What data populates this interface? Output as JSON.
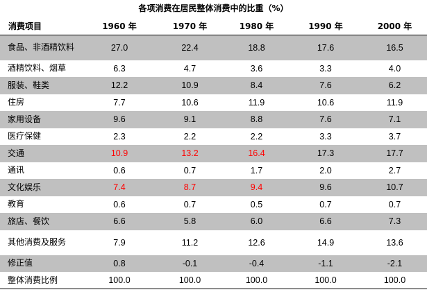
{
  "title": "各项消费在居民整体消费中的比重（%）",
  "headers": [
    "消费项目",
    "1960 年",
    "1970 年",
    "1980 年",
    "1990 年",
    "2000 年"
  ],
  "rows": [
    {
      "item": "食品、非酒精饮料",
      "values": [
        "27.0",
        "22.4",
        "18.8",
        "17.6",
        "16.5"
      ],
      "highlight": []
    },
    {
      "item": "酒精饮料、烟草",
      "values": [
        "6.3",
        "4.7",
        "3.6",
        "3.3",
        "4.0"
      ],
      "highlight": []
    },
    {
      "item": "服装、鞋类",
      "values": [
        "12.2",
        "10.9",
        "8.4",
        "7.6",
        "6.2"
      ],
      "highlight": []
    },
    {
      "item": "住房",
      "values": [
        "7.7",
        "10.6",
        "11.9",
        "10.6",
        "11.9"
      ],
      "highlight": []
    },
    {
      "item": "家用设备",
      "values": [
        "9.6",
        "9.1",
        "8.8",
        "7.6",
        "7.1"
      ],
      "highlight": []
    },
    {
      "item": "医疗保健",
      "values": [
        "2.3",
        "2.2",
        "2.2",
        "3.3",
        "3.7"
      ],
      "highlight": []
    },
    {
      "item": "交通",
      "values": [
        "10.9",
        "13.2",
        "16.4",
        "17.3",
        "17.7"
      ],
      "highlight": [
        0,
        1,
        2
      ]
    },
    {
      "item": "通讯",
      "values": [
        "0.6",
        "0.7",
        "1.7",
        "2.0",
        "2.7"
      ],
      "highlight": []
    },
    {
      "item": "文化娱乐",
      "values": [
        "7.4",
        "8.7",
        "9.4",
        "9.6",
        "10.7"
      ],
      "highlight": [
        0,
        1,
        2
      ]
    },
    {
      "item": "教育",
      "values": [
        "0.6",
        "0.7",
        "0.5",
        "0.7",
        "0.7"
      ],
      "highlight": []
    },
    {
      "item": "旅店、餐饮",
      "values": [
        "6.6",
        "5.8",
        "6.0",
        "6.6",
        "7.3"
      ],
      "highlight": []
    },
    {
      "item": "其他消费及服务",
      "values": [
        "7.9",
        "11.2",
        "12.6",
        "14.9",
        "13.6"
      ],
      "highlight": []
    },
    {
      "item": "修正值",
      "values": [
        "0.8",
        "-0.1",
        "-0.4",
        "-1.1",
        "-2.1"
      ],
      "highlight": []
    },
    {
      "item": "整体消费比例",
      "values": [
        "100.0",
        "100.0",
        "100.0",
        "100.0",
        "100.0"
      ],
      "highlight": []
    }
  ],
  "colors": {
    "shade": "#c0c0c0",
    "highlight": "#ff0000"
  }
}
